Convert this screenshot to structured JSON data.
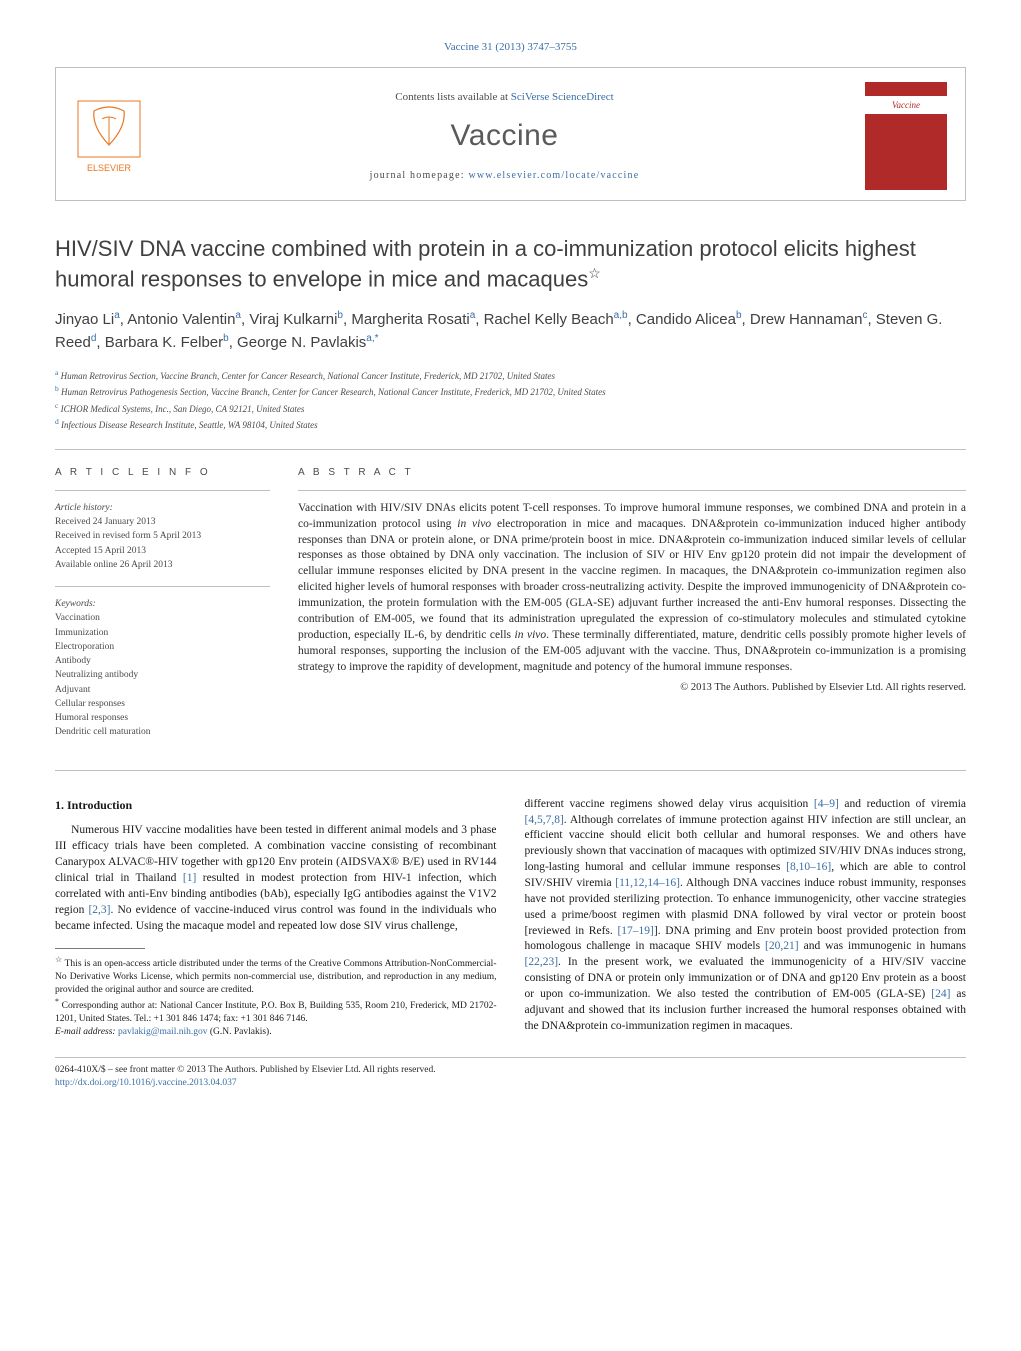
{
  "journal_ref": "Vaccine 31 (2013) 3747–3755",
  "header": {
    "contents_prefix": "Contents lists available at ",
    "contents_link": "SciVerse ScienceDirect",
    "journal_name": "Vaccine",
    "homepage_prefix": "journal homepage: ",
    "homepage_link": "www.elsevier.com/locate/vaccine",
    "cover_label": "Vaccine"
  },
  "title": "HIV/SIV DNA vaccine combined with protein in a co-immunization protocol elicits highest humoral responses to envelope in mice and macaques",
  "title_star": "☆",
  "authors_html": "Jinyao Li<sup>a</sup>, Antonio Valentin<sup>a</sup>, Viraj Kulkarni<sup>b</sup>, Margherita Rosati<sup>a</sup>, Rachel Kelly Beach<sup>a,b</sup>, Candido Alicea<sup>b</sup>, Drew Hannaman<sup>c</sup>, Steven G. Reed<sup>d</sup>, Barbara K. Felber<sup>b</sup>, George N. Pavlakis<sup>a,*</sup>",
  "affiliations": [
    {
      "sup": "a",
      "text": "Human Retrovirus Section, Vaccine Branch, Center for Cancer Research, National Cancer Institute, Frederick, MD 21702, United States"
    },
    {
      "sup": "b",
      "text": "Human Retrovirus Pathogenesis Section, Vaccine Branch, Center for Cancer Research, National Cancer Institute, Frederick, MD 21702, United States"
    },
    {
      "sup": "c",
      "text": "ICHOR Medical Systems, Inc., San Diego, CA 92121, United States"
    },
    {
      "sup": "d",
      "text": "Infectious Disease Research Institute, Seattle, WA 98104, United States"
    }
  ],
  "article_info": {
    "heading": "A R T I C L E   I N F O",
    "history_label": "Article history:",
    "history": [
      "Received 24 January 2013",
      "Received in revised form 5 April 2013",
      "Accepted 15 April 2013",
      "Available online 26 April 2013"
    ],
    "keywords_label": "Keywords:",
    "keywords": [
      "Vaccination",
      "Immunization",
      "Electroporation",
      "Antibody",
      "Neutralizing antibody",
      "Adjuvant",
      "Cellular responses",
      "Humoral responses",
      "Dendritic cell maturation"
    ]
  },
  "abstract": {
    "heading": "A B S T R A C T",
    "text": "Vaccination with HIV/SIV DNAs elicits potent T-cell responses. To improve humoral immune responses, we combined DNA and protein in a co-immunization protocol using in vivo electroporation in mice and macaques. DNA&protein co-immunization induced higher antibody responses than DNA or protein alone, or DNA prime/protein boost in mice. DNA&protein co-immunization induced similar levels of cellular responses as those obtained by DNA only vaccination. The inclusion of SIV or HIV Env gp120 protein did not impair the development of cellular immune responses elicited by DNA present in the vaccine regimen. In macaques, the DNA&protein co-immunization regimen also elicited higher levels of humoral responses with broader cross-neutralizing activity. Despite the improved immunogenicity of DNA&protein co-immunization, the protein formulation with the EM-005 (GLA-SE) adjuvant further increased the anti-Env humoral responses. Dissecting the contribution of EM-005, we found that its administration upregulated the expression of co-stimulatory molecules and stimulated cytokine production, especially IL-6, by dendritic cells in vivo. These terminally differentiated, mature, dendritic cells possibly promote higher levels of humoral responses, supporting the inclusion of the EM-005 adjuvant with the vaccine. Thus, DNA&protein co-immunization is a promising strategy to improve the rapidity of development, magnitude and potency of the humoral immune responses.",
    "copyright": "© 2013 The Authors. Published by Elsevier Ltd. All rights reserved."
  },
  "intro": {
    "heading": "1.  Introduction",
    "para1_a": "Numerous HIV vaccine modalities have been tested in different animal models and 3 phase III efficacy trials have been completed. A combination vaccine consisting of recombinant Canarypox ALVAC®-HIV together with gp120 Env protein (AIDSVAX® B/E) used in RV144 clinical trial in Thailand ",
    "ref1": "[1]",
    "para1_b": " resulted in modest protection from HIV-1 infection, which correlated with anti-Env binding antibodies (bAb), especially IgG antibodies against the V1V2 region ",
    "ref2": "[2,3]",
    "para1_c": ". No evidence of vaccine-induced virus control was found in the individuals who became infected. Using the macaque model and repeated low dose SIV virus challenge, ",
    "para2_a": "different vaccine regimens showed delay virus acquisition ",
    "ref3": "[4–9]",
    "para2_b": " and reduction of viremia ",
    "ref4": "[4,5,7,8]",
    "para2_c": ". Although correlates of immune protection against HIV infection are still unclear, an efficient vaccine should elicit both cellular and humoral responses. We and others have previously shown that vaccination of macaques with optimized SIV/HIV DNAs induces strong, long-lasting humoral and cellular immune responses ",
    "ref5": "[8,10–16]",
    "para2_d": ", which are able to control SIV/SHIV viremia ",
    "ref6": "[11,12,14–16]",
    "para2_e": ". Although DNA vaccines induce robust immunity, responses have not provided sterilizing protection. To enhance immunogenicity, other vaccine strategies used a prime/boost regimen with plasmid DNA followed by viral vector or protein boost [reviewed in Refs. ",
    "ref7": "[17–19]",
    "para2_f": "]. DNA priming and Env protein boost provided protection from homologous challenge in macaque SHIV models ",
    "ref8": "[20,21]",
    "para2_g": " and was immunogenic in humans ",
    "ref9": "[22,23]",
    "para2_h": ". In the present work, we evaluated the immunogenicity of a HIV/SIV vaccine consisting of DNA or protein only immunization or of DNA and gp120 Env protein as a boost or upon co-immunization. We also tested the contribution of EM-005 (GLA-SE) ",
    "ref10": "[24]",
    "para2_i": " as adjuvant and showed that its inclusion further increased the humoral responses obtained with the DNA&protein co-immunization regimen in macaques."
  },
  "footnotes": {
    "star": "☆",
    "star_text": "This is an open-access article distributed under the terms of the Creative Commons Attribution-NonCommercial-No Derivative Works License, which permits non-commercial use, distribution, and reproduction in any medium, provided the original author and source are credited.",
    "corr": "*",
    "corr_text": "Corresponding author at: National Cancer Institute, P.O. Box B, Building 535, Room 210, Frederick, MD 21702-1201, United States. Tel.: +1 301 846 1474; fax: +1 301 846 7146.",
    "email_label": "E-mail address: ",
    "email": "pavlakig@mail.nih.gov",
    "email_suffix": " (G.N. Pavlakis)."
  },
  "footer": {
    "issn": "0264-410X/$ – see front matter © 2013 The Authors. Published by Elsevier Ltd. All rights reserved.",
    "doi_prefix": "http://dx.doi.org/",
    "doi": "10.1016/j.vaccine.2013.04.037"
  },
  "colors": {
    "link": "#3a6ea5",
    "rule": "#bfbfbf",
    "text_muted": "#4a4a4a",
    "cover_bg": "#b02a2a"
  }
}
